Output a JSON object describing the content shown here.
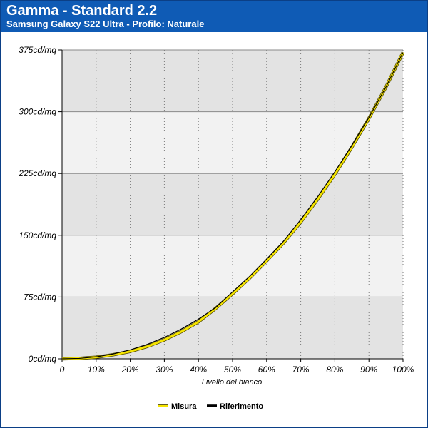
{
  "header": {
    "title": "Gamma - Standard 2.2",
    "subtitle": "Samsung Galaxy S22 Ultra - Profilo: Naturale"
  },
  "chart_data": {
    "type": "line",
    "xlabel": "Livello del bianco",
    "ylabel": "",
    "x_tick_labels": [
      "0",
      "10%",
      "20%",
      "30%",
      "40%",
      "50%",
      "60%",
      "70%",
      "80%",
      "90%",
      "100%"
    ],
    "y_tick_labels": [
      "0cd/mq",
      "75cd/mq",
      "150cd/mq",
      "225cd/mq",
      "300cd/mq",
      "375cd/mq"
    ],
    "xlim": [
      0,
      100
    ],
    "ylim": [
      0,
      375
    ],
    "y_ticks": [
      0,
      75,
      150,
      225,
      300,
      375
    ],
    "x_ticks": [
      0,
      10,
      20,
      30,
      40,
      50,
      60,
      70,
      80,
      90,
      100
    ],
    "grid": true,
    "legend_position": "bottom",
    "x": [
      0,
      5,
      10,
      15,
      20,
      25,
      30,
      35,
      40,
      45,
      50,
      55,
      60,
      65,
      70,
      75,
      80,
      85,
      90,
      95,
      100
    ],
    "series": [
      {
        "name": "Misura",
        "color": "#f5e400",
        "values": [
          0,
          0.5,
          2,
          5,
          9,
          15,
          23,
          33,
          45,
          61,
          79,
          98,
          119,
          141,
          166,
          194,
          224,
          257,
          292,
          330,
          372
        ]
      },
      {
        "name": "Riferimento",
        "color": "#000000",
        "values": [
          0,
          0.5,
          2.4,
          5.9,
          10.9,
          17.6,
          26,
          36.2,
          48.2,
          62,
          81.3,
          100,
          121,
          143,
          169,
          197,
          227,
          259,
          293,
          330,
          372
        ]
      }
    ]
  },
  "colors": {
    "header_bg": "#0f5bb5",
    "band_shaded": "#e3e3e3",
    "band_plain": "#f2f2f2"
  }
}
